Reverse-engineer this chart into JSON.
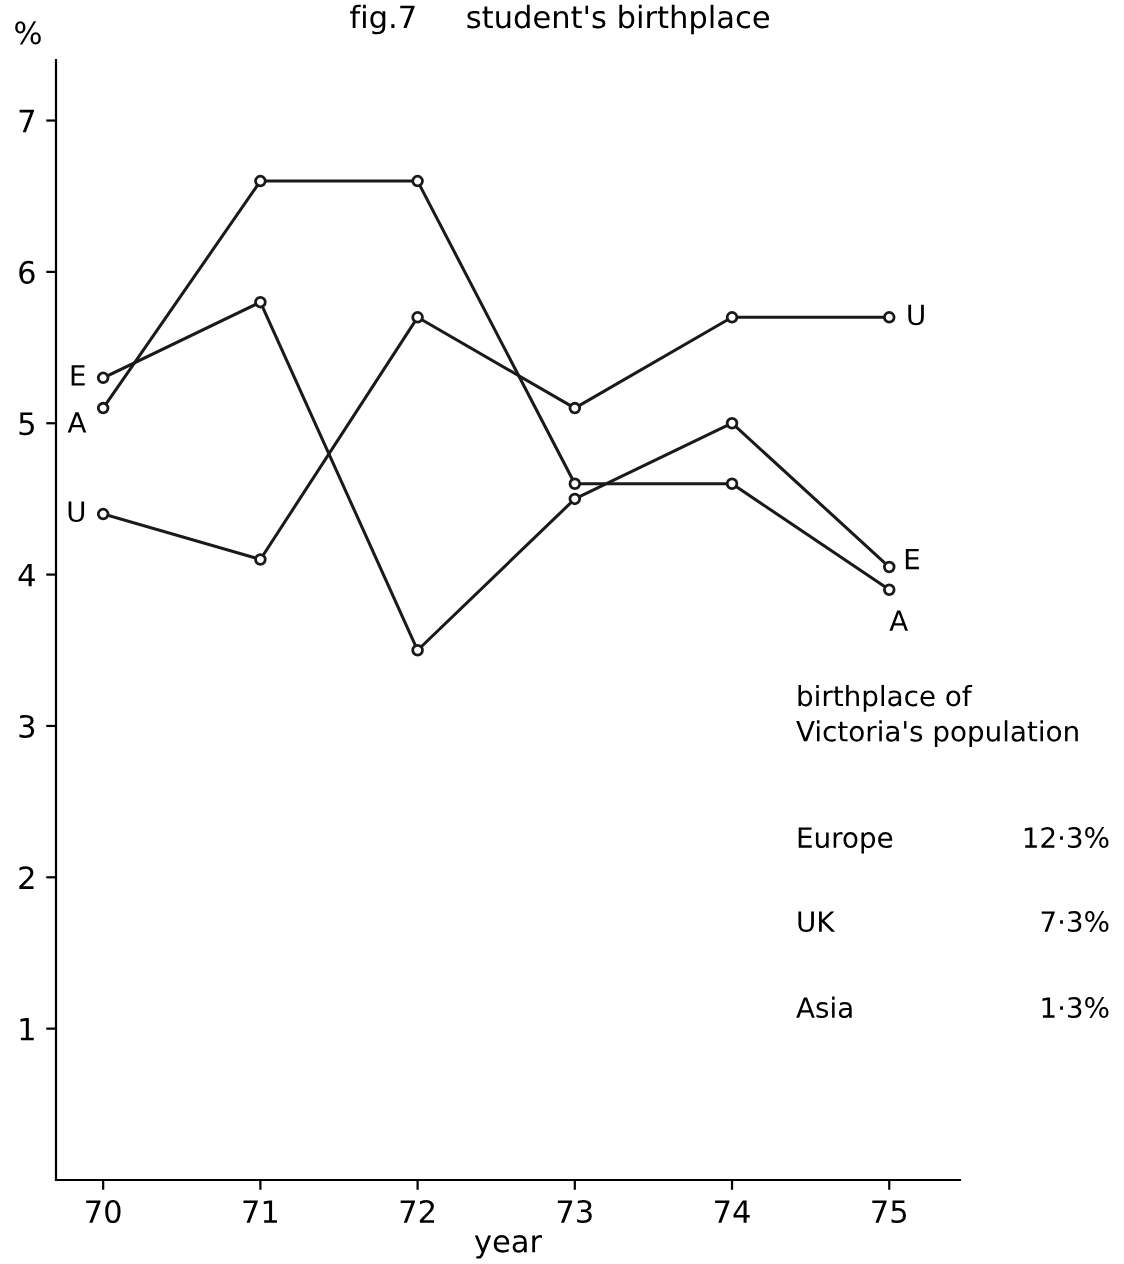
{
  "chart_data": {
    "type": "line",
    "title": "fig.7     student's birthplace",
    "xlabel": "year",
    "ylabel": "%",
    "x": [
      70,
      71,
      72,
      73,
      74,
      75
    ],
    "series": [
      {
        "name": "E",
        "color": "#1a1a1a",
        "values": [
          5.3,
          5.8,
          3.5,
          4.5,
          5.0,
          4.05
        ]
      },
      {
        "name": "A",
        "color": "#1a1a1a",
        "values": [
          5.1,
          6.6,
          6.6,
          4.6,
          4.6,
          3.9
        ]
      },
      {
        "name": "U",
        "color": "#1a1a1a",
        "values": [
          4.4,
          4.1,
          5.7,
          5.1,
          5.7,
          5.7
        ]
      }
    ],
    "xlim": [
      69.7,
      75.45
    ],
    "ylim": [
      0,
      7.4
    ],
    "xticks": [
      70,
      71,
      72,
      73,
      74,
      75
    ],
    "yticks": [
      1,
      2,
      3,
      4,
      5,
      6,
      7
    ],
    "marker": "circle",
    "line_style": "solid",
    "grid": false,
    "legend": false,
    "annotations": [
      "birthplace of\nVictoria's population",
      "Europe",
      "12·3%",
      "UK",
      "7·3%",
      "Asia",
      "1·3%"
    ]
  }
}
